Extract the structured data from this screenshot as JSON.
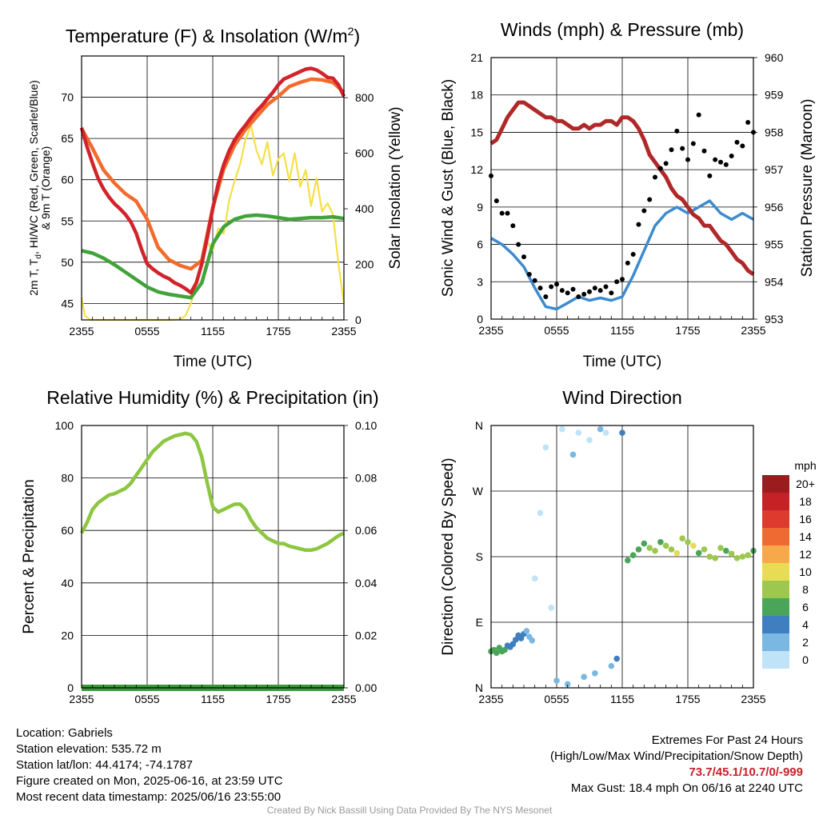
{
  "time_ticks": [
    "2355",
    "0555",
    "1155",
    "1755",
    "2355"
  ],
  "chart_data": [
    {
      "type": "line",
      "title": "Temperature (F) & Insolation (W/m",
      "title_sup": "2",
      "title_close": ")",
      "xlabel": "Time (UTC)",
      "ylabel_lines": [
        "2m T, T",
        "d",
        ", HI/WC (Red, Green, Scarlet/Blue)",
        "& 9m T (Orange)"
      ],
      "ylabel_right": "Solar Insolation (Yellow)",
      "ylim": [
        43,
        75
      ],
      "ylim_right": [
        0,
        950
      ],
      "yticks": [
        45,
        50,
        55,
        60,
        65,
        70
      ],
      "yticks_right": [
        0,
        200,
        400,
        600,
        800
      ],
      "x_hours": [
        0,
        24
      ],
      "grid": true,
      "series": [
        {
          "color": "#d2232a",
          "x": [
            0,
            0.5,
            1,
            1.5,
            2,
            2.5,
            3,
            3.5,
            4,
            4.5,
            5,
            5.5,
            6,
            6.5,
            7,
            7.5,
            8,
            8.5,
            9,
            9.5,
            10,
            10.5,
            11,
            11.5,
            12,
            12.5,
            13,
            13.5,
            14,
            14.5,
            15,
            15.5,
            16,
            16.5,
            17,
            17.5,
            18,
            18.5,
            19,
            19.5,
            20,
            20.5,
            21,
            21.5,
            22,
            22.5,
            23,
            23.5,
            24
          ],
          "values": [
            66.3,
            64,
            62,
            60.2,
            58.9,
            57.9,
            57.1,
            56.5,
            55.8,
            54.9,
            53.5,
            51.5,
            49.8,
            49.2,
            48.7,
            48.3,
            48,
            47.5,
            47.2,
            46.8,
            46.3,
            47.5,
            49.8,
            53,
            56.5,
            59.5,
            61.8,
            63.5,
            64.8,
            65.8,
            66.6,
            67.5,
            68.3,
            69,
            69.8,
            70.6,
            71.5,
            72.2,
            72.5,
            72.8,
            73.1,
            73.4,
            73.5,
            73.3,
            72.9,
            72.4,
            72.3,
            71.5,
            70.1
          ]
        },
        {
          "color": "#f26b2c",
          "x": [
            0,
            1,
            2,
            3,
            4,
            5,
            6,
            7,
            8,
            9,
            10,
            11,
            12,
            13,
            14,
            15,
            16,
            17,
            18,
            19,
            20,
            21,
            22,
            23,
            24
          ],
          "values": [
            66.2,
            63.8,
            61.2,
            59.6,
            58.3,
            57.4,
            55.2,
            51.8,
            50.3,
            49.6,
            49.2,
            50.2,
            56.6,
            61.3,
            64.2,
            66.1,
            67.6,
            69.1,
            70.1,
            71.3,
            71.8,
            72.2,
            72.1,
            71.8,
            70.6
          ]
        },
        {
          "color": "#41a33a",
          "x": [
            0,
            1,
            2,
            3,
            4,
            5,
            6,
            7,
            8,
            9,
            10,
            11,
            12,
            13,
            14,
            15,
            16,
            17,
            18,
            19,
            20,
            21,
            22,
            23,
            24
          ],
          "values": [
            51.4,
            51.1,
            50.5,
            49.7,
            48.8,
            47.9,
            47,
            46.4,
            46.1,
            45.9,
            45.7,
            47.5,
            52.2,
            54.3,
            55.2,
            55.6,
            55.7,
            55.6,
            55.4,
            55.2,
            55.3,
            55.4,
            55.4,
            55.5,
            55.3
          ]
        },
        {
          "color": "#f5e045",
          "axis": "right",
          "x": [
            0,
            0.3,
            0.8,
            2,
            4,
            6,
            8,
            9,
            9.5,
            10,
            10.5,
            11,
            11.5,
            12,
            12.5,
            13,
            13.5,
            14,
            14.5,
            15,
            15.5,
            16,
            16.5,
            17,
            17.5,
            18,
            18.5,
            19,
            19.5,
            20,
            20.5,
            21,
            21.5,
            22,
            22.5,
            23,
            23.5,
            24
          ],
          "values": [
            80,
            15,
            0,
            0,
            0,
            0,
            0,
            2,
            15,
            60,
            130,
            200,
            280,
            250,
            330,
            310,
            430,
            500,
            560,
            650,
            700,
            610,
            560,
            640,
            520,
            580,
            600,
            500,
            600,
            480,
            540,
            410,
            510,
            390,
            420,
            380,
            200,
            60
          ]
        }
      ]
    },
    {
      "type": "line",
      "title": "Winds (mph) & Pressure (mb)",
      "xlabel": "Time (UTC)",
      "ylabel": "Sonic Wind & Gust (Blue, Black)",
      "ylabel_right": "Station Pressure (Maroon)",
      "ylim": [
        0,
        21
      ],
      "ylim_right": [
        953,
        960
      ],
      "yticks": [
        0,
        3,
        6,
        9,
        12,
        15,
        18,
        21
      ],
      "yticks_right": [
        953,
        954,
        955,
        956,
        957,
        958,
        959,
        960
      ],
      "x_hours": [
        0,
        24
      ],
      "grid": true,
      "series": [
        {
          "color": "#3d8bcf",
          "x": [
            0,
            1,
            2,
            3,
            4,
            5,
            6,
            7,
            8,
            9,
            10,
            11,
            12,
            13,
            14,
            15,
            16,
            17,
            18,
            19,
            20,
            21,
            22,
            23,
            24
          ],
          "values": [
            6.5,
            6,
            5.2,
            4.2,
            2.5,
            1,
            0.8,
            1.3,
            1.8,
            1.5,
            1.7,
            1.5,
            1.8,
            3.5,
            5.5,
            7.5,
            8.5,
            9,
            8.5,
            9,
            9.5,
            8.5,
            8,
            8.5,
            8
          ]
        },
        {
          "type": "scatter",
          "color": "#000000",
          "x": [
            0,
            0.5,
            1,
            1.5,
            2,
            2.5,
            3,
            3.5,
            4,
            4.5,
            5,
            5.5,
            6,
            6.5,
            7,
            7.5,
            8,
            8.5,
            9,
            9.5,
            10,
            10.5,
            11,
            11.5,
            12,
            12.5,
            13,
            13.5,
            14,
            14.5,
            15,
            15.5,
            16,
            16.5,
            17,
            17.5,
            18,
            18.5,
            19,
            19.5,
            20,
            20.5,
            21,
            21.5,
            22,
            22.5,
            23,
            23.5,
            24
          ],
          "values": [
            11.5,
            9.5,
            8.5,
            8.5,
            7.5,
            6,
            5,
            3.6,
            3.1,
            2.5,
            1.8,
            2.6,
            2.8,
            2.3,
            2.1,
            2.4,
            1.8,
            2,
            2.2,
            2.5,
            2.3,
            2.6,
            2.1,
            3,
            3.2,
            4.5,
            5.2,
            7.6,
            8.7,
            9.6,
            11.4,
            12.1,
            12.5,
            13.6,
            15.1,
            13.7,
            12.8,
            14.1,
            16.4,
            13.5,
            11.5,
            12.8,
            12.6,
            12.4,
            13.1,
            14.2,
            13.9,
            15.8,
            15
          ]
        },
        {
          "color": "#b02828",
          "axis": "right",
          "x": [
            0,
            0.5,
            1,
            1.5,
            2,
            2.5,
            3,
            3.5,
            4,
            4.5,
            5,
            5.5,
            6,
            6.5,
            7,
            7.5,
            8,
            8.5,
            9,
            9.5,
            10,
            10.5,
            11,
            11.5,
            12,
            12.5,
            13,
            13.5,
            14,
            14.5,
            15,
            15.5,
            16,
            16.5,
            17,
            17.5,
            18,
            18.5,
            19,
            19.5,
            20,
            20.5,
            21,
            21.5,
            22,
            22.5,
            23,
            23.5,
            24
          ],
          "values": [
            957.7,
            957.8,
            958.1,
            958.4,
            958.6,
            958.8,
            958.8,
            958.7,
            958.6,
            958.5,
            958.4,
            958.4,
            958.3,
            958.3,
            958.2,
            958.1,
            958.1,
            958.2,
            958.1,
            958.2,
            958.2,
            958.3,
            958.3,
            958.2,
            958.4,
            958.4,
            958.3,
            958.1,
            957.8,
            957.4,
            957.2,
            957,
            956.8,
            956.5,
            956.3,
            956.2,
            956,
            955.8,
            955.7,
            955.5,
            955.5,
            955.3,
            955.1,
            955,
            954.8,
            954.6,
            954.5,
            954.3,
            954.2
          ]
        }
      ]
    },
    {
      "type": "line",
      "title": "Relative Humidity (%) & Precipitation (in)",
      "ylabel": "Percent & Precipitation",
      "ylim": [
        0,
        100
      ],
      "ylim_right": [
        0,
        0.1
      ],
      "yticks": [
        0,
        20,
        40,
        60,
        80,
        100
      ],
      "yticks_right": [
        "0.00",
        "0.02",
        "0.04",
        "0.06",
        "0.08",
        "0.10"
      ],
      "x_hours": [
        0,
        24
      ],
      "grid": true,
      "series": [
        {
          "color": "#8dc641",
          "x": [
            0,
            0.5,
            1,
            1.5,
            2,
            2.5,
            3,
            3.5,
            4,
            4.5,
            5,
            5.5,
            6,
            6.5,
            7,
            7.5,
            8,
            8.5,
            9,
            9.5,
            10,
            10.5,
            11,
            11.5,
            12,
            12.5,
            13,
            13.5,
            14,
            14.5,
            15,
            15.5,
            16,
            16.5,
            17,
            17.5,
            18,
            18.5,
            19,
            19.5,
            20,
            20.5,
            21,
            21.5,
            22,
            22.5,
            23,
            23.5,
            24
          ],
          "values": [
            59,
            63,
            68,
            70.5,
            72,
            73.5,
            74,
            75,
            76,
            78,
            81,
            84,
            87,
            90,
            92,
            94,
            95,
            96,
            96.5,
            97,
            96.5,
            94,
            88,
            78,
            69,
            67,
            68,
            69,
            70,
            70,
            68,
            64,
            61,
            59,
            57,
            56,
            55,
            55,
            54,
            53.5,
            53,
            52.5,
            52.5,
            53,
            54,
            55,
            56.5,
            58,
            59
          ]
        },
        {
          "color": "#3a9a3a",
          "x": [
            0,
            24
          ],
          "values": [
            0,
            0
          ]
        }
      ]
    },
    {
      "type": "scatter",
      "title": "Wind Direction",
      "ylabel": "Direction (Colored By Speed)",
      "ylim": [
        0,
        360
      ],
      "yticks": [
        "N",
        "E",
        "S",
        "W",
        "N"
      ],
      "x_hours": [
        0,
        24
      ],
      "grid": true,
      "legend_title": "mph",
      "legend_labels": [
        "20+",
        "18",
        "16",
        "14",
        "12",
        "10",
        "8",
        "6",
        "4",
        "2",
        "0"
      ],
      "legend_colors": [
        "#9b1c1f",
        "#c62127",
        "#de3a2e",
        "#ef6a32",
        "#f7a84a",
        "#e8dc55",
        "#9cc84f",
        "#4aa55a",
        "#3f7fc0",
        "#7ab8e3",
        "#bfe3f7"
      ],
      "x": [
        0,
        0.25,
        0.5,
        0.75,
        1,
        1.25,
        1.5,
        1.75,
        2,
        2.25,
        2.5,
        2.75,
        3,
        3.25,
        3.5,
        3.75,
        4,
        4.5,
        5,
        5.5,
        6,
        6.5,
        7,
        7.5,
        8,
        8.5,
        9,
        9.5,
        10,
        10.5,
        11,
        11.5,
        12,
        12.5,
        13,
        13.5,
        14,
        14.5,
        15,
        15.5,
        16,
        16.5,
        17,
        17.5,
        18,
        18.5,
        19,
        19.5,
        20,
        20.5,
        21,
        21.5,
        22,
        22.5,
        23,
        23.5,
        24
      ],
      "values": [
        50,
        52,
        48,
        55,
        50,
        52,
        58,
        56,
        60,
        66,
        72,
        68,
        74,
        78,
        70,
        65,
        150,
        240,
        330,
        110,
        10,
        355,
        5,
        320,
        350,
        15,
        340,
        20,
        355,
        350,
        30,
        40,
        350,
        175,
        182,
        190,
        198,
        192,
        188,
        200,
        195,
        190,
        185,
        205,
        200,
        195,
        185,
        190,
        180,
        178,
        192,
        188,
        184,
        178,
        180,
        182,
        188
      ],
      "speeds": [
        6,
        6,
        6,
        7,
        6,
        6,
        5,
        5,
        4,
        4,
        4,
        4,
        4,
        3,
        3,
        2,
        1,
        1,
        1,
        1,
        2,
        1,
        3,
        3,
        1,
        2,
        1,
        3,
        2,
        1,
        3,
        4,
        5,
        6,
        7,
        6,
        7,
        8,
        9,
        7,
        8,
        8,
        10,
        8,
        9,
        10,
        7,
        8,
        8,
        9,
        8,
        7,
        8,
        9,
        8,
        8,
        7
      ]
    }
  ],
  "footer": {
    "location": "Location: Gabriels",
    "elevation": "Station elevation: 535.72 m",
    "latlon": "Station lat/lon: 44.4174; -74.1787",
    "created": "Figure created on Mon, 2025-06-16, at 23:59 UTC",
    "recent": "Most recent data timestamp: 2025/06/16 23:55:00",
    "extremes_title": "Extremes For Past 24 Hours",
    "extremes_legend": "(High/Low/Max Wind/Precipitation/Snow Depth)",
    "extremes_values": "73.7/45.1/10.7/0/-999",
    "max_gust": "Max Gust: 18.4 mph On 06/16 at 2240 UTC",
    "credit": "Created By Nick Bassill Using Data Provided By The NYS Mesonet"
  }
}
